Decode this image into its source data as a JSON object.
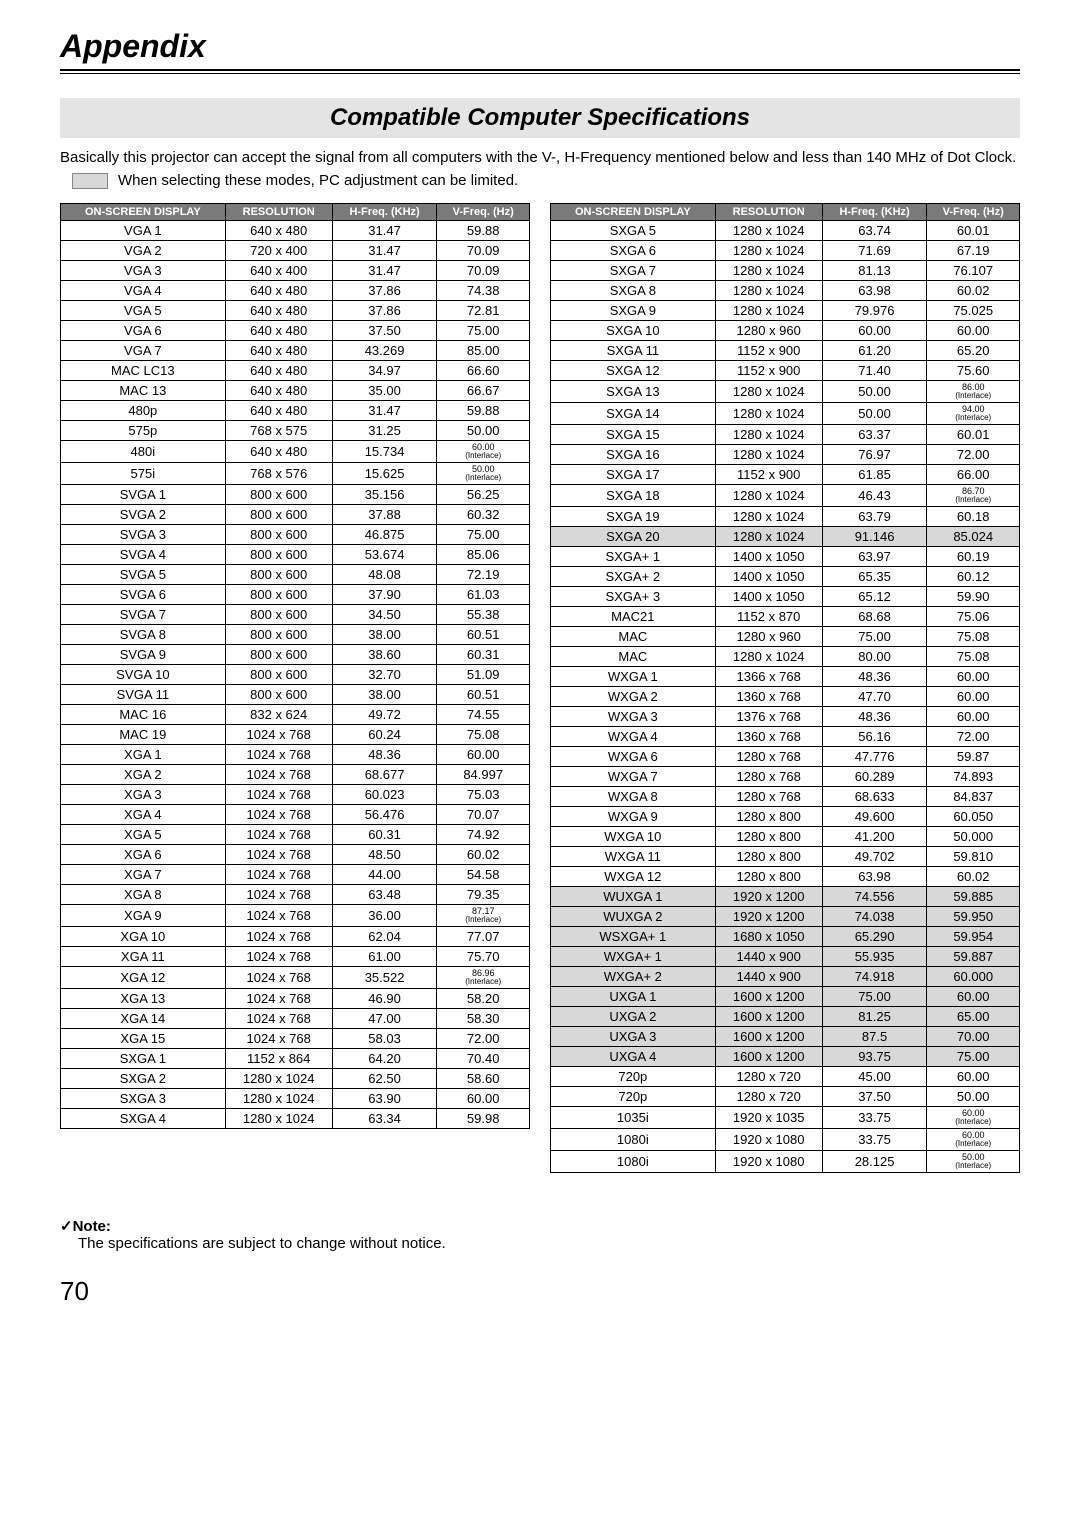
{
  "title": "Appendix",
  "section": "Compatible Computer Specifications",
  "intro": "Basically this projector can accept the signal from all computers with the V-, H-Frequency mentioned below and less than 140 MHz of Dot Clock.",
  "legend": "When selecting these modes, PC adjustment can be limited.",
  "headers": {
    "display": "ON-SCREEN DISPLAY",
    "resolution": "RESOLUTION",
    "hfreq": "H-Freq. (KHz)",
    "vfreq": "V-Freq. (Hz)"
  },
  "highlight_color": "#d8d8d8",
  "left_rows": [
    {
      "d": "VGA 1",
      "r": "640 x 480",
      "h": "31.47",
      "v": "59.88"
    },
    {
      "d": "VGA 2",
      "r": "720 x 400",
      "h": "31.47",
      "v": "70.09"
    },
    {
      "d": "VGA 3",
      "r": "640 x 400",
      "h": "31.47",
      "v": "70.09"
    },
    {
      "d": "VGA 4",
      "r": "640 x 480",
      "h": "37.86",
      "v": "74.38"
    },
    {
      "d": "VGA 5",
      "r": "640 x 480",
      "h": "37.86",
      "v": "72.81"
    },
    {
      "d": "VGA 6",
      "r": "640 x 480",
      "h": "37.50",
      "v": "75.00"
    },
    {
      "d": "VGA 7",
      "r": "640 x 480",
      "h": "43.269",
      "v": "85.00"
    },
    {
      "d": "MAC LC13",
      "r": "640 x 480",
      "h": "34.97",
      "v": "66.60"
    },
    {
      "d": "MAC 13",
      "r": "640 x 480",
      "h": "35.00",
      "v": "66.67"
    },
    {
      "d": "480p",
      "r": "640 x 480",
      "h": "31.47",
      "v": "59.88"
    },
    {
      "d": "575p",
      "r": "768 x 575",
      "h": "31.25",
      "v": "50.00"
    },
    {
      "d": "480i",
      "r": "640 x 480",
      "h": "15.734",
      "v": "60.00",
      "interlace": true
    },
    {
      "d": "575i",
      "r": "768 x 576",
      "h": "15.625",
      "v": "50.00",
      "interlace": true
    },
    {
      "d": "SVGA 1",
      "r": "800 x 600",
      "h": "35.156",
      "v": "56.25"
    },
    {
      "d": "SVGA 2",
      "r": "800 x 600",
      "h": "37.88",
      "v": "60.32"
    },
    {
      "d": "SVGA 3",
      "r": "800 x 600",
      "h": "46.875",
      "v": "75.00"
    },
    {
      "d": "SVGA 4",
      "r": "800 x 600",
      "h": "53.674",
      "v": "85.06"
    },
    {
      "d": "SVGA 5",
      "r": "800 x 600",
      "h": "48.08",
      "v": "72.19"
    },
    {
      "d": "SVGA 6",
      "r": "800 x 600",
      "h": "37.90",
      "v": "61.03"
    },
    {
      "d": "SVGA 7",
      "r": "800 x 600",
      "h": "34.50",
      "v": "55.38"
    },
    {
      "d": "SVGA 8",
      "r": "800 x 600",
      "h": "38.00",
      "v": "60.51"
    },
    {
      "d": "SVGA 9",
      "r": "800 x 600",
      "h": "38.60",
      "v": "60.31"
    },
    {
      "d": "SVGA 10",
      "r": "800 x 600",
      "h": "32.70",
      "v": "51.09"
    },
    {
      "d": "SVGA 11",
      "r": "800 x 600",
      "h": "38.00",
      "v": "60.51"
    },
    {
      "d": "MAC 16",
      "r": "832 x 624",
      "h": "49.72",
      "v": "74.55"
    },
    {
      "d": "MAC 19",
      "r": "1024 x 768",
      "h": "60.24",
      "v": "75.08"
    },
    {
      "d": "XGA 1",
      "r": "1024 x 768",
      "h": "48.36",
      "v": "60.00"
    },
    {
      "d": "XGA 2",
      "r": "1024 x 768",
      "h": "68.677",
      "v": "84.997"
    },
    {
      "d": "XGA 3",
      "r": "1024 x 768",
      "h": "60.023",
      "v": "75.03"
    },
    {
      "d": "XGA 4",
      "r": "1024 x 768",
      "h": "56.476",
      "v": "70.07"
    },
    {
      "d": "XGA 5",
      "r": "1024 x 768",
      "h": "60.31",
      "v": "74.92"
    },
    {
      "d": "XGA 6",
      "r": "1024 x 768",
      "h": "48.50",
      "v": "60.02"
    },
    {
      "d": "XGA 7",
      "r": "1024 x 768",
      "h": "44.00",
      "v": "54.58"
    },
    {
      "d": "XGA 8",
      "r": "1024 x 768",
      "h": "63.48",
      "v": "79.35"
    },
    {
      "d": "XGA 9",
      "r": "1024 x 768",
      "h": "36.00",
      "v": "87.17",
      "interlace": true
    },
    {
      "d": "XGA 10",
      "r": "1024 x 768",
      "h": "62.04",
      "v": "77.07"
    },
    {
      "d": "XGA 11",
      "r": "1024 x 768",
      "h": "61.00",
      "v": "75.70"
    },
    {
      "d": "XGA 12",
      "r": "1024 x 768",
      "h": "35.522",
      "v": "86.96",
      "interlace": true
    },
    {
      "d": "XGA 13",
      "r": "1024 x 768",
      "h": "46.90",
      "v": "58.20"
    },
    {
      "d": "XGA 14",
      "r": "1024 x 768",
      "h": "47.00",
      "v": "58.30"
    },
    {
      "d": "XGA 15",
      "r": "1024 x 768",
      "h": "58.03",
      "v": "72.00"
    },
    {
      "d": "SXGA 1",
      "r": "1152 x 864",
      "h": "64.20",
      "v": "70.40"
    },
    {
      "d": "SXGA 2",
      "r": "1280 x 1024",
      "h": "62.50",
      "v": "58.60"
    },
    {
      "d": "SXGA 3",
      "r": "1280 x 1024",
      "h": "63.90",
      "v": "60.00"
    },
    {
      "d": "SXGA 4",
      "r": "1280 x 1024",
      "h": "63.34",
      "v": "59.98"
    }
  ],
  "right_rows": [
    {
      "d": "SXGA 5",
      "r": "1280 x 1024",
      "h": "63.74",
      "v": "60.01"
    },
    {
      "d": "SXGA 6",
      "r": "1280 x 1024",
      "h": "71.69",
      "v": "67.19"
    },
    {
      "d": "SXGA 7",
      "r": "1280 x 1024",
      "h": "81.13",
      "v": "76.107"
    },
    {
      "d": "SXGA 8",
      "r": "1280 x 1024",
      "h": "63.98",
      "v": "60.02"
    },
    {
      "d": "SXGA 9",
      "r": "1280 x 1024",
      "h": "79.976",
      "v": "75.025"
    },
    {
      "d": "SXGA 10",
      "r": "1280 x 960",
      "h": "60.00",
      "v": "60.00"
    },
    {
      "d": "SXGA 11",
      "r": "1152 x 900",
      "h": "61.20",
      "v": "65.20"
    },
    {
      "d": "SXGA 12",
      "r": "1152 x 900",
      "h": "71.40",
      "v": "75.60"
    },
    {
      "d": "SXGA 13",
      "r": "1280 x 1024",
      "h": "50.00",
      "v": "86.00",
      "interlace": true
    },
    {
      "d": "SXGA 14",
      "r": "1280 x 1024",
      "h": "50.00",
      "v": "94.00",
      "interlace": true
    },
    {
      "d": "SXGA 15",
      "r": "1280 x 1024",
      "h": "63.37",
      "v": "60.01"
    },
    {
      "d": "SXGA 16",
      "r": "1280 x 1024",
      "h": "76.97",
      "v": "72.00"
    },
    {
      "d": "SXGA 17",
      "r": "1152 x 900",
      "h": "61.85",
      "v": "66.00"
    },
    {
      "d": "SXGA 18",
      "r": "1280 x 1024",
      "h": "46.43",
      "v": "86.70",
      "interlace": true
    },
    {
      "d": "SXGA 19",
      "r": "1280 x 1024",
      "h": "63.79",
      "v": "60.18"
    },
    {
      "d": "SXGA 20",
      "r": "1280 x 1024",
      "h": "91.146",
      "v": "85.024",
      "hl": true
    },
    {
      "d": "SXGA+ 1",
      "r": "1400 x 1050",
      "h": "63.97",
      "v": "60.19"
    },
    {
      "d": "SXGA+ 2",
      "r": "1400 x 1050",
      "h": "65.35",
      "v": "60.12"
    },
    {
      "d": "SXGA+ 3",
      "r": "1400 x 1050",
      "h": "65.12",
      "v": "59.90"
    },
    {
      "d": "MAC21",
      "r": "1152 x 870",
      "h": "68.68",
      "v": "75.06"
    },
    {
      "d": "MAC",
      "r": "1280 x 960",
      "h": "75.00",
      "v": "75.08"
    },
    {
      "d": "MAC",
      "r": "1280 x 1024",
      "h": "80.00",
      "v": "75.08"
    },
    {
      "d": "WXGA 1",
      "r": "1366 x 768",
      "h": "48.36",
      "v": "60.00"
    },
    {
      "d": "WXGA 2",
      "r": "1360 x 768",
      "h": "47.70",
      "v": "60.00"
    },
    {
      "d": "WXGA 3",
      "r": "1376 x 768",
      "h": "48.36",
      "v": "60.00"
    },
    {
      "d": "WXGA 4",
      "r": "1360 x 768",
      "h": "56.16",
      "v": "72.00"
    },
    {
      "d": "WXGA 6",
      "r": "1280 x 768",
      "h": "47.776",
      "v": "59.87"
    },
    {
      "d": "WXGA 7",
      "r": "1280 x 768",
      "h": "60.289",
      "v": "74.893"
    },
    {
      "d": "WXGA 8",
      "r": "1280 x 768",
      "h": "68.633",
      "v": "84.837"
    },
    {
      "d": "WXGA 9",
      "r": "1280 x 800",
      "h": "49.600",
      "v": "60.050"
    },
    {
      "d": "WXGA 10",
      "r": "1280 x 800",
      "h": "41.200",
      "v": "50.000"
    },
    {
      "d": "WXGA 11",
      "r": "1280 x 800",
      "h": "49.702",
      "v": "59.810"
    },
    {
      "d": "WXGA 12",
      "r": "1280 x 800",
      "h": "63.98",
      "v": "60.02"
    },
    {
      "d": "WUXGA 1",
      "r": "1920 x 1200",
      "h": "74.556",
      "v": "59.885",
      "hl": true
    },
    {
      "d": "WUXGA 2",
      "r": "1920 x 1200",
      "h": "74.038",
      "v": "59.950",
      "hl": true
    },
    {
      "d": "WSXGA+ 1",
      "r": "1680 x 1050",
      "h": "65.290",
      "v": "59.954",
      "hl": true
    },
    {
      "d": "WXGA+ 1",
      "r": "1440 x 900",
      "h": "55.935",
      "v": "59.887",
      "hl": true
    },
    {
      "d": "WXGA+ 2",
      "r": "1440 x 900",
      "h": "74.918",
      "v": "60.000",
      "hl": true
    },
    {
      "d": "UXGA 1",
      "r": "1600 x 1200",
      "h": "75.00",
      "v": "60.00",
      "hl": true
    },
    {
      "d": "UXGA 2",
      "r": "1600 x 1200",
      "h": "81.25",
      "v": "65.00",
      "hl": true
    },
    {
      "d": "UXGA 3",
      "r": "1600 x 1200",
      "h": "87.5",
      "v": "70.00",
      "hl": true
    },
    {
      "d": "UXGA 4",
      "r": "1600 x 1200",
      "h": "93.75",
      "v": "75.00",
      "hl": true
    },
    {
      "d": "720p",
      "r": "1280 x 720",
      "h": "45.00",
      "v": "60.00"
    },
    {
      "d": "720p",
      "r": "1280 x 720",
      "h": "37.50",
      "v": "50.00"
    },
    {
      "d": "1035i",
      "r": "1920 x 1035",
      "h": "33.75",
      "v": "60.00",
      "interlace": true
    },
    {
      "d": "1080i",
      "r": "1920 x 1080",
      "h": "33.75",
      "v": "60.00",
      "interlace": true
    },
    {
      "d": "1080i",
      "r": "1920 x 1080",
      "h": "28.125",
      "v": "50.00",
      "interlace": true
    }
  ],
  "note": {
    "heading": "✓Note:",
    "body": "The specifications are subject to change without notice."
  },
  "page_number": "70"
}
